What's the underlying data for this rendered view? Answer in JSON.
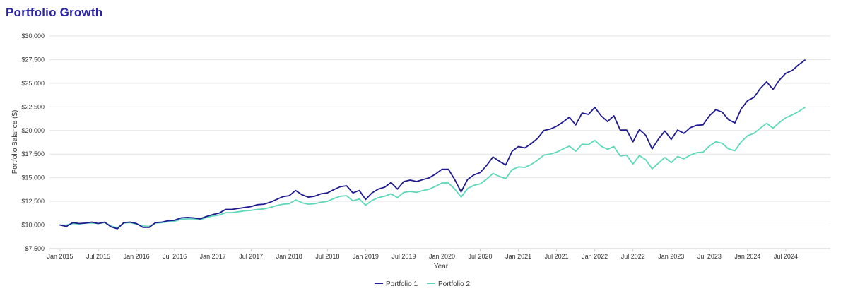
{
  "header": {
    "title": "Portfolio Growth"
  },
  "chart_data": {
    "type": "line",
    "title": "Portfolio Growth",
    "xlabel": "Year",
    "ylabel": "Portfolio Balance ($)",
    "ylim": [
      7500,
      30000
    ],
    "yticks": [
      7500,
      10000,
      12500,
      15000,
      17500,
      20000,
      22500,
      25000,
      27500,
      30000
    ],
    "ytick_labels": [
      "$7,500",
      "$10,000",
      "$12,500",
      "$15,000",
      "$17,500",
      "$20,000",
      "$22,500",
      "$25,000",
      "$27,500",
      "$30,000"
    ],
    "xticks": [
      {
        "label": "Jan 2015",
        "month": 0
      },
      {
        "label": "Jul 2015",
        "month": 6
      },
      {
        "label": "Jan 2016",
        "month": 12
      },
      {
        "label": "Jul 2016",
        "month": 18
      },
      {
        "label": "Jan 2017",
        "month": 24
      },
      {
        "label": "Jul 2017",
        "month": 30
      },
      {
        "label": "Jan 2018",
        "month": 36
      },
      {
        "label": "Jul 2018",
        "month": 42
      },
      {
        "label": "Jan 2019",
        "month": 48
      },
      {
        "label": "Jul 2019",
        "month": 54
      },
      {
        "label": "Jan 2020",
        "month": 60
      },
      {
        "label": "Jul 2020",
        "month": 66
      },
      {
        "label": "Jan 2021",
        "month": 72
      },
      {
        "label": "Jul 2021",
        "month": 78
      },
      {
        "label": "Jan 2022",
        "month": 84
      },
      {
        "label": "Jul 2022",
        "month": 90
      },
      {
        "label": "Jan 2023",
        "month": 96
      },
      {
        "label": "Jul 2023",
        "month": 102
      },
      {
        "label": "Jan 2024",
        "month": 108
      },
      {
        "label": "Jul 2024",
        "month": 114
      }
    ],
    "x_start": "Jan 2015",
    "x_range_months": [
      0,
      121
    ],
    "grid": true,
    "legend_position": "bottom-center",
    "series": [
      {
        "name": "Portfolio 1",
        "color": "#1f1a8f",
        "values": [
          10000,
          9850,
          10250,
          10150,
          10200,
          10300,
          10150,
          10300,
          9800,
          9600,
          10250,
          10300,
          10150,
          9750,
          9750,
          10250,
          10300,
          10450,
          10500,
          10750,
          10800,
          10750,
          10650,
          10900,
          11100,
          11250,
          11650,
          11650,
          11750,
          11850,
          11950,
          12150,
          12200,
          12400,
          12700,
          13000,
          13100,
          13650,
          13200,
          12950,
          13050,
          13300,
          13400,
          13750,
          14050,
          14150,
          13400,
          13650,
          12700,
          13400,
          13800,
          14000,
          14500,
          13800,
          14600,
          14750,
          14600,
          14800,
          15000,
          15400,
          15900,
          15900,
          14800,
          13500,
          14800,
          15300,
          15550,
          16300,
          17200,
          16750,
          16350,
          17800,
          18300,
          18150,
          18600,
          19150,
          20000,
          20150,
          20450,
          20900,
          21400,
          20600,
          21850,
          21700,
          22450,
          21550,
          20950,
          21550,
          20050,
          20050,
          18800,
          20100,
          19500,
          18050,
          19100,
          19950,
          19050,
          20050,
          19700,
          20300,
          20550,
          20600,
          21550,
          22200,
          21950,
          21150,
          20800,
          22300,
          23150,
          23500,
          24450,
          25150,
          24350,
          25350,
          26050,
          26350,
          26950,
          27450
        ]
      },
      {
        "name": "Portfolio 2",
        "color": "#5ed8b8",
        "values": [
          10000,
          10000,
          10150,
          10100,
          10200,
          10200,
          10150,
          10250,
          9900,
          9700,
          10200,
          10250,
          10100,
          9900,
          9850,
          10200,
          10250,
          10350,
          10400,
          10600,
          10650,
          10650,
          10550,
          10800,
          10950,
          11050,
          11300,
          11300,
          11400,
          11500,
          11550,
          11650,
          11700,
          11850,
          12050,
          12200,
          12250,
          12650,
          12350,
          12200,
          12250,
          12400,
          12500,
          12800,
          13050,
          13100,
          12550,
          12750,
          12100,
          12600,
          12900,
          13050,
          13300,
          12900,
          13450,
          13550,
          13450,
          13650,
          13800,
          14100,
          14450,
          14450,
          13800,
          12950,
          13850,
          14200,
          14350,
          14850,
          15450,
          15150,
          14900,
          15850,
          16150,
          16100,
          16400,
          16850,
          17400,
          17500,
          17700,
          18050,
          18350,
          17800,
          18550,
          18500,
          18950,
          18350,
          18000,
          18300,
          17300,
          17400,
          16450,
          17350,
          16900,
          15950,
          16550,
          17150,
          16600,
          17250,
          17000,
          17400,
          17650,
          17700,
          18350,
          18800,
          18650,
          18050,
          17850,
          18800,
          19450,
          19700,
          20250,
          20750,
          20250,
          20850,
          21350,
          21650,
          22000,
          22450
        ]
      }
    ]
  }
}
